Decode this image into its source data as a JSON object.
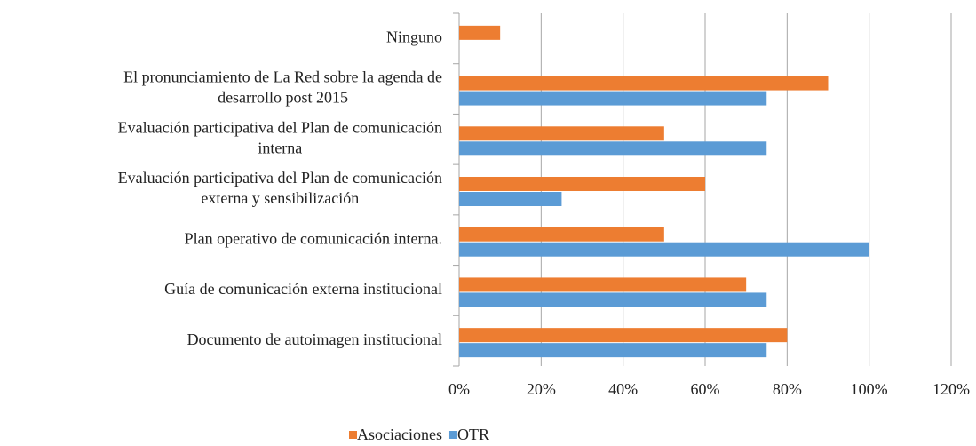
{
  "chart_data": {
    "type": "bar",
    "orientation": "horizontal",
    "categories": [
      "Ninguno",
      "El pronunciamiento de La Red sobre la agenda de\ndesarrollo post 2015",
      "Evaluación participativa del Plan de comunicación\ninterna",
      "Evaluación participativa del Plan de comunicación\nexterna y sensibilización",
      "Plan operativo de comunicación interna.",
      "Guía de comunicación externa institucional",
      "Documento de autoimagen institucional"
    ],
    "series": [
      {
        "name": "Asociaciones",
        "color": "#ed7d31",
        "values": [
          10,
          90,
          50,
          60,
          50,
          70,
          80
        ]
      },
      {
        "name": "OTR",
        "color": "#5b9bd5",
        "values": [
          null,
          75,
          75,
          25,
          100,
          75,
          75
        ]
      }
    ],
    "xlim": [
      0,
      120
    ],
    "xticks": [
      {
        "value": 0,
        "label": "0%"
      },
      {
        "value": 20,
        "label": "20%"
      },
      {
        "value": 40,
        "label": "40%"
      },
      {
        "value": 60,
        "label": "60%"
      },
      {
        "value": 80,
        "label": "80%"
      },
      {
        "value": 100,
        "label": "100%"
      },
      {
        "value": 120,
        "label": "120%"
      }
    ],
    "grid": true,
    "legend": "bottom"
  }
}
